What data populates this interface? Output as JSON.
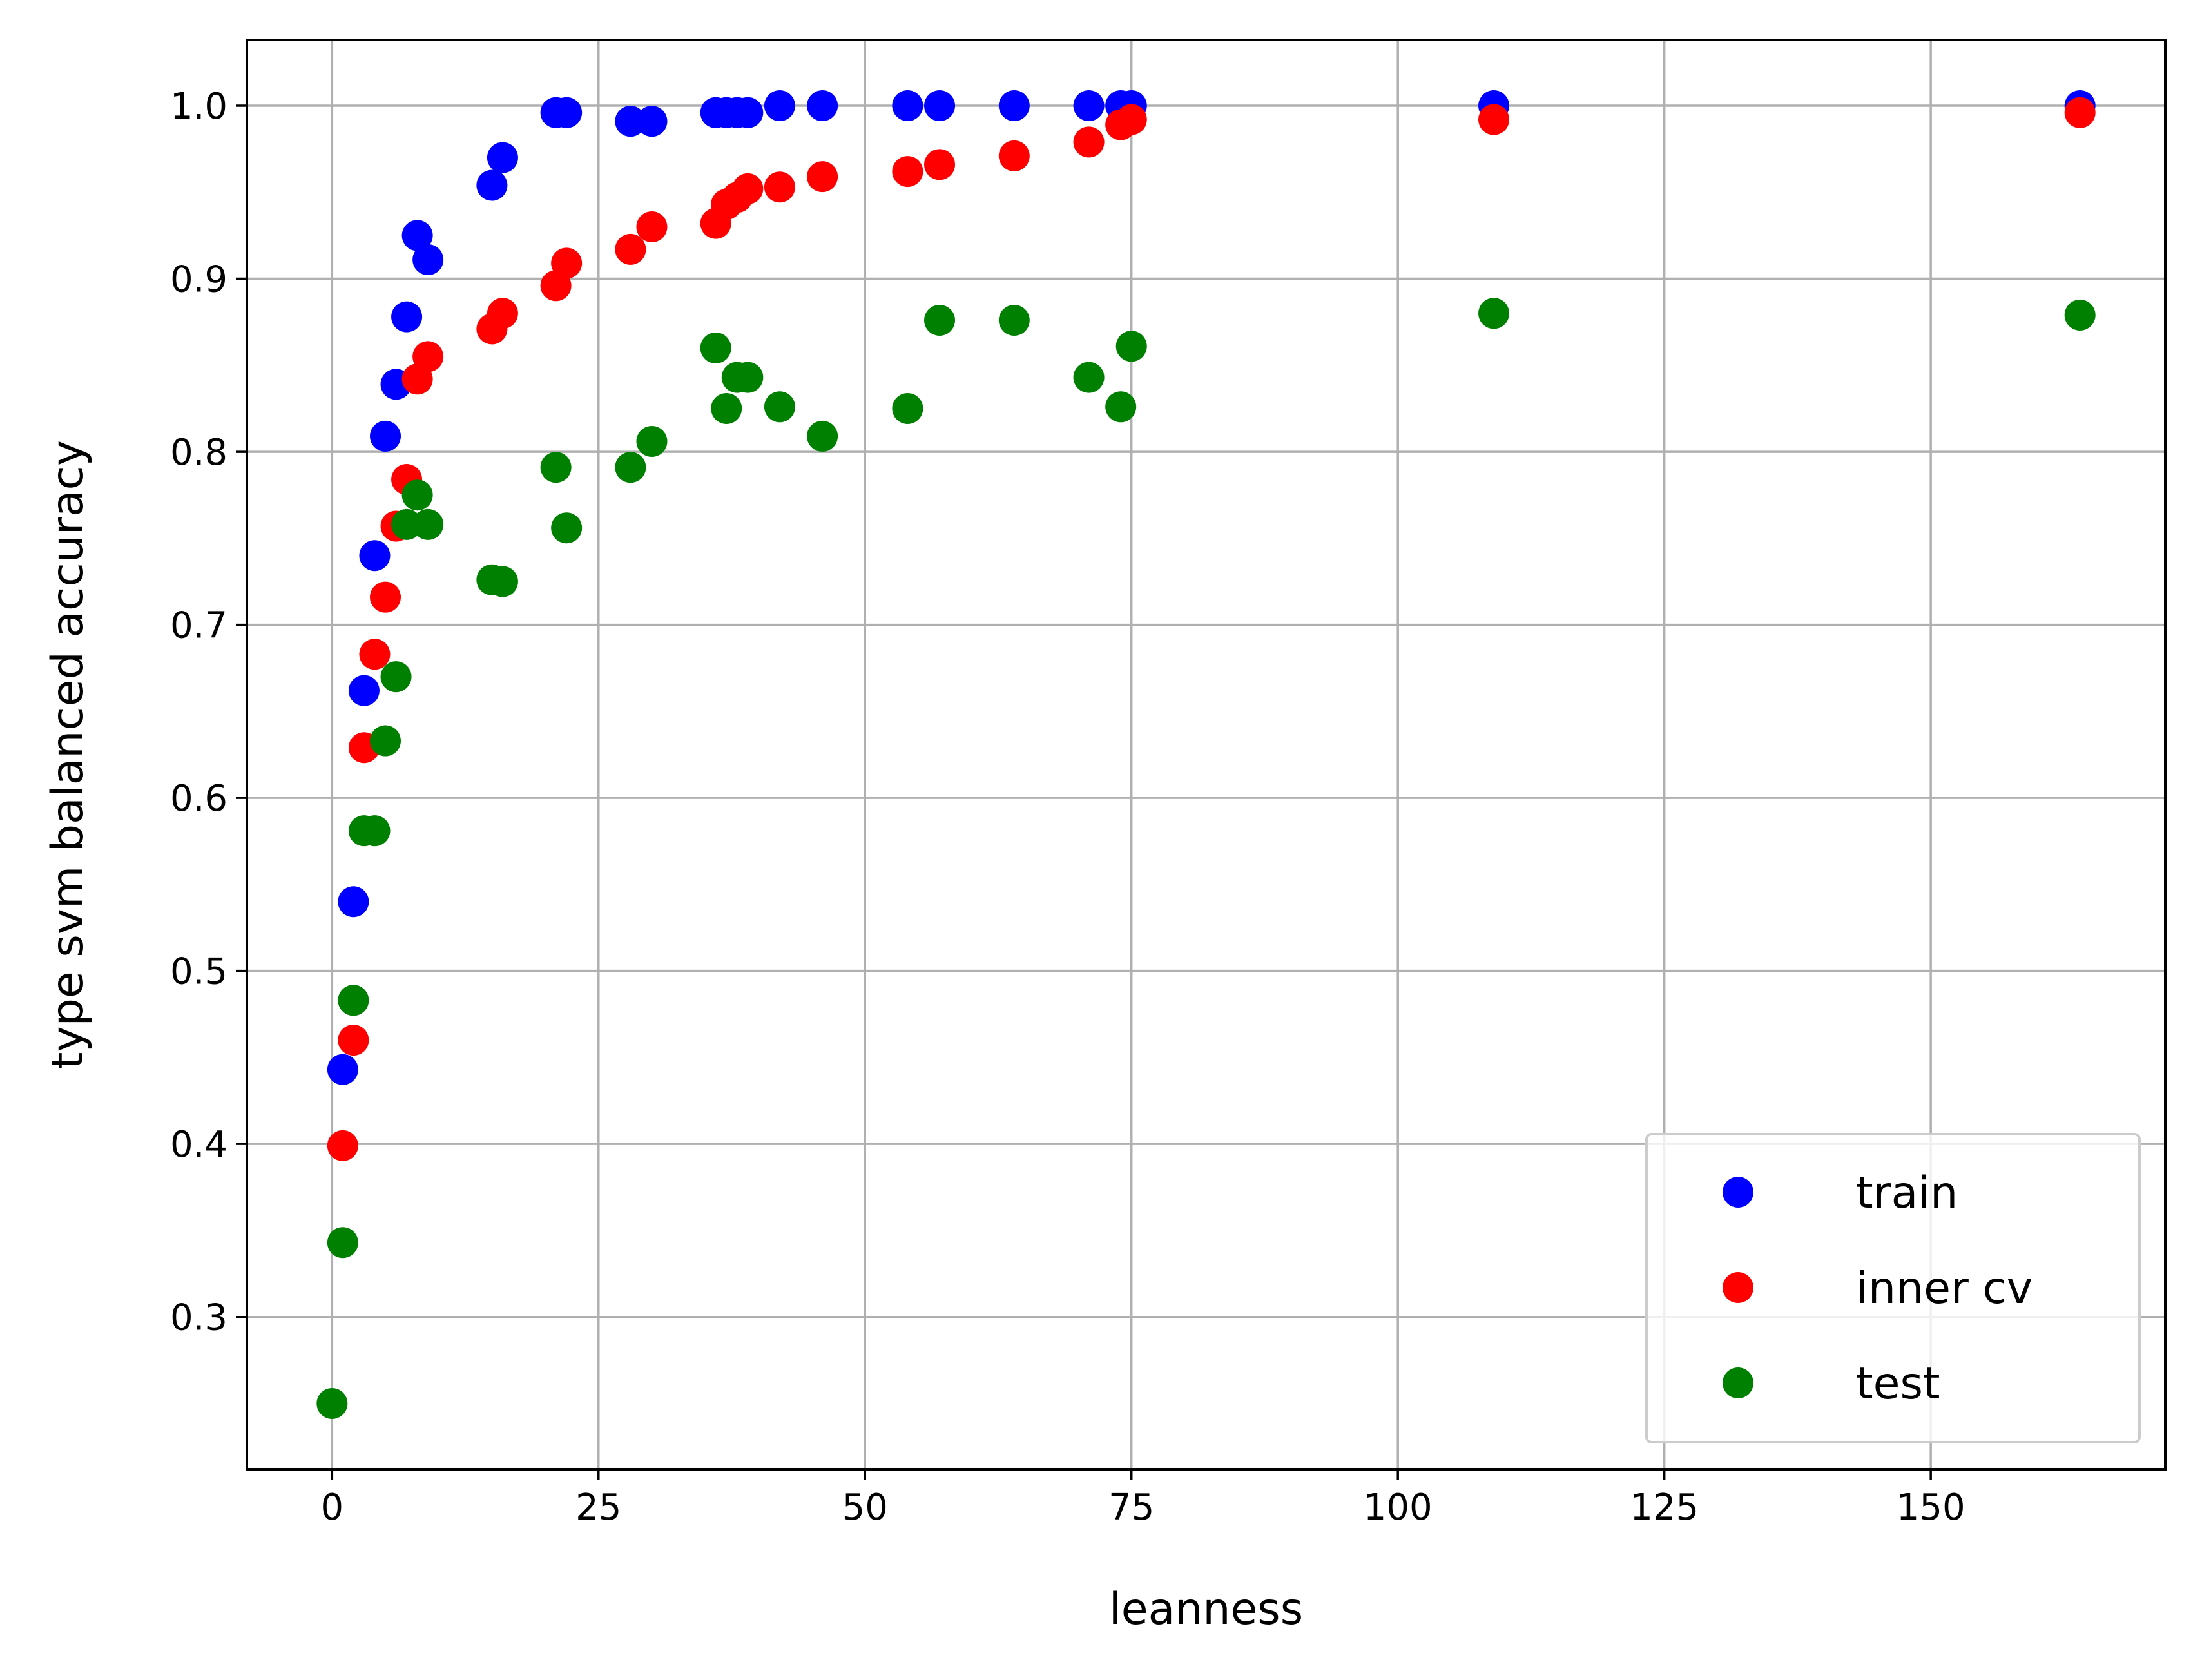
{
  "chart_data": {
    "type": "scatter",
    "title": "",
    "xlabel": "leanness",
    "ylabel": "type svm balanced accuracy",
    "xlim": [
      -8,
      172
    ],
    "ylim": [
      0.212,
      1.038
    ],
    "xticks": [
      0,
      25,
      50,
      75,
      100,
      125,
      150
    ],
    "xtick_labels": [
      "0",
      "25",
      "50",
      "75",
      "100",
      "125",
      "150"
    ],
    "yticks": [
      0.3,
      0.4,
      0.5,
      0.6,
      0.7,
      0.8,
      0.9,
      1.0
    ],
    "ytick_labels": [
      "0.3",
      "0.4",
      "0.5",
      "0.6",
      "0.7",
      "0.8",
      "0.9",
      "1.0"
    ],
    "grid": true,
    "legend_position": "bottom-right",
    "series": [
      {
        "name": "train",
        "color": "#0000ff",
        "points": [
          [
            1,
            0.443
          ],
          [
            2,
            0.54
          ],
          [
            3,
            0.662
          ],
          [
            4,
            0.74
          ],
          [
            5,
            0.809
          ],
          [
            6,
            0.839
          ],
          [
            7,
            0.878
          ],
          [
            8,
            0.925
          ],
          [
            9,
            0.911
          ],
          [
            15,
            0.954
          ],
          [
            16,
            0.97
          ],
          [
            21,
            0.996
          ],
          [
            22,
            0.996
          ],
          [
            28,
            0.991
          ],
          [
            30,
            0.991
          ],
          [
            36,
            0.996
          ],
          [
            37,
            0.996
          ],
          [
            38,
            0.996
          ],
          [
            39,
            0.996
          ],
          [
            42,
            1.0
          ],
          [
            46,
            1.0
          ],
          [
            54,
            1.0
          ],
          [
            57,
            1.0
          ],
          [
            64,
            1.0
          ],
          [
            71,
            1.0
          ],
          [
            74,
            1.0
          ],
          [
            75,
            1.0
          ],
          [
            109,
            1.0
          ],
          [
            164,
            1.0
          ]
        ]
      },
      {
        "name": "inner cv",
        "color": "#ff0000",
        "points": [
          [
            1,
            0.399
          ],
          [
            2,
            0.46
          ],
          [
            3,
            0.629
          ],
          [
            4,
            0.683
          ],
          [
            5,
            0.716
          ],
          [
            6,
            0.757
          ],
          [
            7,
            0.784
          ],
          [
            8,
            0.842
          ],
          [
            9,
            0.855
          ],
          [
            15,
            0.871
          ],
          [
            16,
            0.88
          ],
          [
            21,
            0.896
          ],
          [
            22,
            0.909
          ],
          [
            28,
            0.917
          ],
          [
            30,
            0.93
          ],
          [
            36,
            0.932
          ],
          [
            37,
            0.943
          ],
          [
            38,
            0.947
          ],
          [
            39,
            0.952
          ],
          [
            42,
            0.953
          ],
          [
            46,
            0.959
          ],
          [
            54,
            0.962
          ],
          [
            57,
            0.966
          ],
          [
            64,
            0.971
          ],
          [
            71,
            0.979
          ],
          [
            74,
            0.989
          ],
          [
            75,
            0.992
          ],
          [
            109,
            0.992
          ],
          [
            164,
            0.996
          ]
        ]
      },
      {
        "name": "test",
        "color": "#008000",
        "points": [
          [
            0,
            0.25
          ],
          [
            1,
            0.343
          ],
          [
            2,
            0.483
          ],
          [
            3,
            0.581
          ],
          [
            4,
            0.581
          ],
          [
            5,
            0.633
          ],
          [
            6,
            0.67
          ],
          [
            7,
            0.758
          ],
          [
            8,
            0.775
          ],
          [
            9,
            0.758
          ],
          [
            15,
            0.726
          ],
          [
            16,
            0.725
          ],
          [
            21,
            0.791
          ],
          [
            22,
            0.756
          ],
          [
            28,
            0.791
          ],
          [
            30,
            0.806
          ],
          [
            36,
            0.86
          ],
          [
            37,
            0.825
          ],
          [
            38,
            0.843
          ],
          [
            39,
            0.843
          ],
          [
            42,
            0.826
          ],
          [
            46,
            0.809
          ],
          [
            54,
            0.825
          ],
          [
            57,
            0.876
          ],
          [
            64,
            0.876
          ],
          [
            71,
            0.843
          ],
          [
            74,
            0.826
          ],
          [
            75,
            0.861
          ],
          [
            109,
            0.88
          ],
          [
            164,
            0.879
          ]
        ]
      }
    ]
  }
}
